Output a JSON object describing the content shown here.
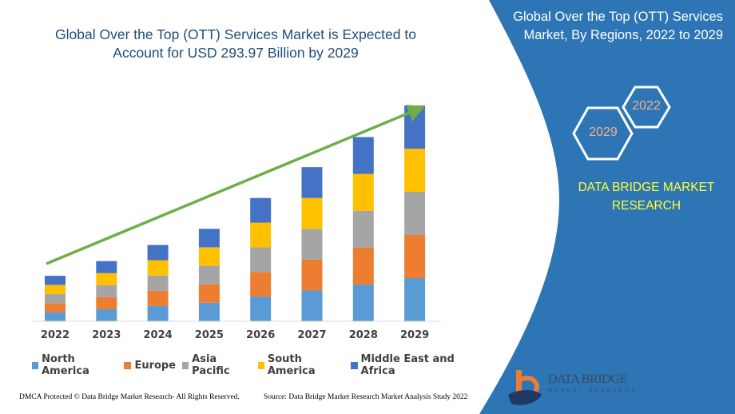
{
  "header": {
    "title": "Global Over the Top (OTT) Services Market is Expected to Account for USD 293.97 Billion by 2029"
  },
  "side_panel": {
    "title": "Global Over the Top (OTT) Services Market, By Regions, 2022 to 2029",
    "hex_start": "2022",
    "hex_end": "2029",
    "brand": "DATA BRIDGE MARKET RESEARCH",
    "logo_text": "DATA BRIDGE",
    "logo_subtext": "MARKET RESEARCH",
    "panel_color": "#2e75b6",
    "brand_color": "#ffff33"
  },
  "footer": {
    "dmca": "DMCA Protected © Data Bridge Market Research- All Rights Reserved.",
    "source": "Source: Data Bridge Market Research Market Analysis Study 2022"
  },
  "chart_data": {
    "type": "bar",
    "stacked": true,
    "title": "Global Over the Top (OTT) Services Market is Expected to Account for USD 293.97 Billion by 2029",
    "xlabel": "",
    "ylabel": "",
    "y_axis_visible": false,
    "grid": false,
    "legend_position": "bottom",
    "trend_arrow_color": "#70ad47",
    "categories": [
      "2022",
      "2023",
      "2024",
      "2025",
      "2026",
      "2027",
      "2028",
      "2029"
    ],
    "series": [
      {
        "name": "North America",
        "color": "#5b9bd5",
        "values": [
          12.4,
          16.4,
          20.8,
          25.2,
          33.6,
          42.0,
          50.2,
          58.8
        ]
      },
      {
        "name": "Europe",
        "color": "#ed7d31",
        "values": [
          12.4,
          16.4,
          20.8,
          25.2,
          33.6,
          42.0,
          50.2,
          58.8
        ]
      },
      {
        "name": "Asia Pacific",
        "color": "#a5a5a5",
        "values": [
          12.4,
          16.4,
          20.8,
          25.2,
          33.6,
          42.0,
          50.2,
          58.8
        ]
      },
      {
        "name": "South America",
        "color": "#ffc000",
        "values": [
          12.4,
          16.4,
          20.8,
          25.2,
          33.6,
          42.0,
          50.2,
          58.8
        ]
      },
      {
        "name": "Middle East and Africa",
        "color": "#4472c4",
        "values": [
          12.4,
          16.4,
          20.8,
          25.2,
          33.6,
          42.0,
          50.2,
          58.8
        ]
      }
    ]
  }
}
